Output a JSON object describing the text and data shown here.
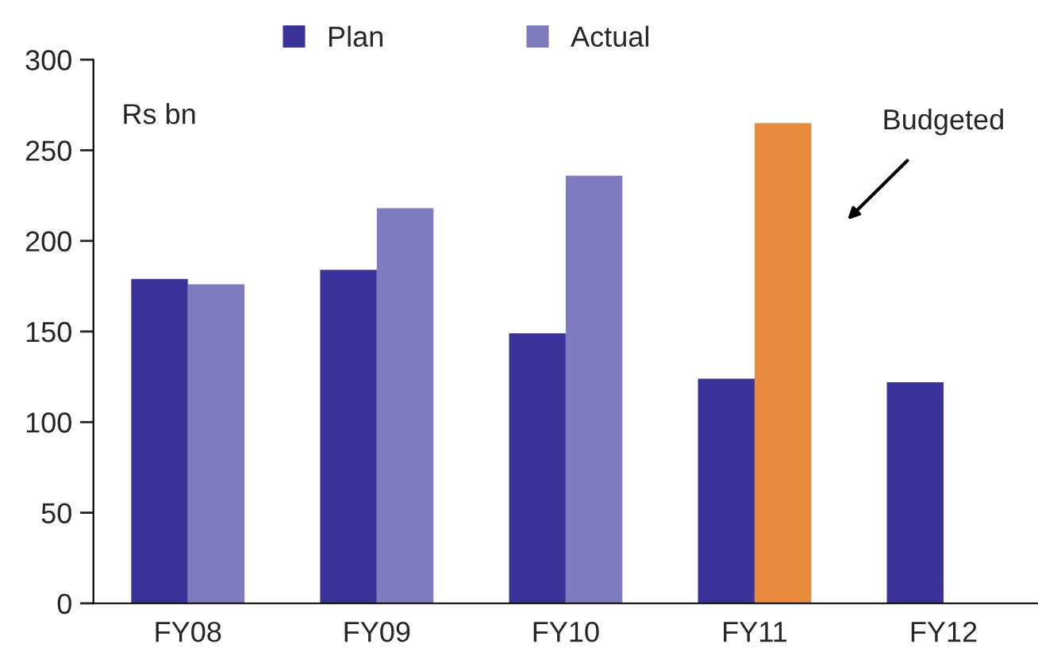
{
  "chart_data": {
    "type": "bar",
    "categories": [
      "FY08",
      "FY09",
      "FY10",
      "FY11",
      "FY12"
    ],
    "series": [
      {
        "name": "Plan",
        "color": "#3b3399",
        "values": [
          179,
          184,
          149,
          124,
          122
        ]
      },
      {
        "name": "Actual",
        "color": "#7f7bbf",
        "colors": [
          "#7f7bbf",
          "#7f7bbf",
          "#7f7bbf",
          "#e98b3f",
          null
        ],
        "values": [
          176,
          218,
          236,
          265,
          null
        ]
      }
    ],
    "ylabel": "Rs bn",
    "ylim": [
      0,
      300
    ],
    "yticks": [
      0,
      50,
      100,
      150,
      200,
      250,
      300
    ],
    "annotations": [
      "Budgeted"
    ],
    "legend": "top",
    "grid": false
  }
}
